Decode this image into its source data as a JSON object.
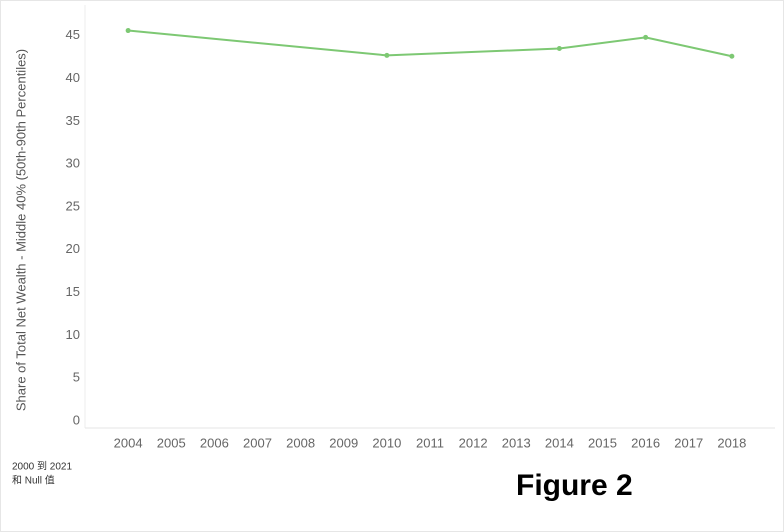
{
  "chart_data": {
    "type": "line",
    "y_label": "Share of Total Net Wealth - Middle 40% (50th-90th Percentiles)",
    "x": [
      2004,
      2010,
      2014,
      2016,
      2018
    ],
    "values": [
      45.6,
      42.7,
      43.5,
      44.8,
      42.6
    ],
    "color": "#7dc873",
    "xlim": [
      2003,
      2019
    ],
    "xticks": [
      2004,
      2005,
      2006,
      2007,
      2008,
      2009,
      2010,
      2011,
      2012,
      2013,
      2014,
      2015,
      2016,
      2017,
      2018
    ],
    "ylim": [
      0,
      48
    ],
    "yticks": [
      0,
      5,
      10,
      15,
      20,
      25,
      30,
      35,
      40,
      45
    ],
    "grid": false,
    "footnote": [
      "2000 到 2021",
      "和 Null 值"
    ],
    "figure_label": "Figure 2"
  }
}
